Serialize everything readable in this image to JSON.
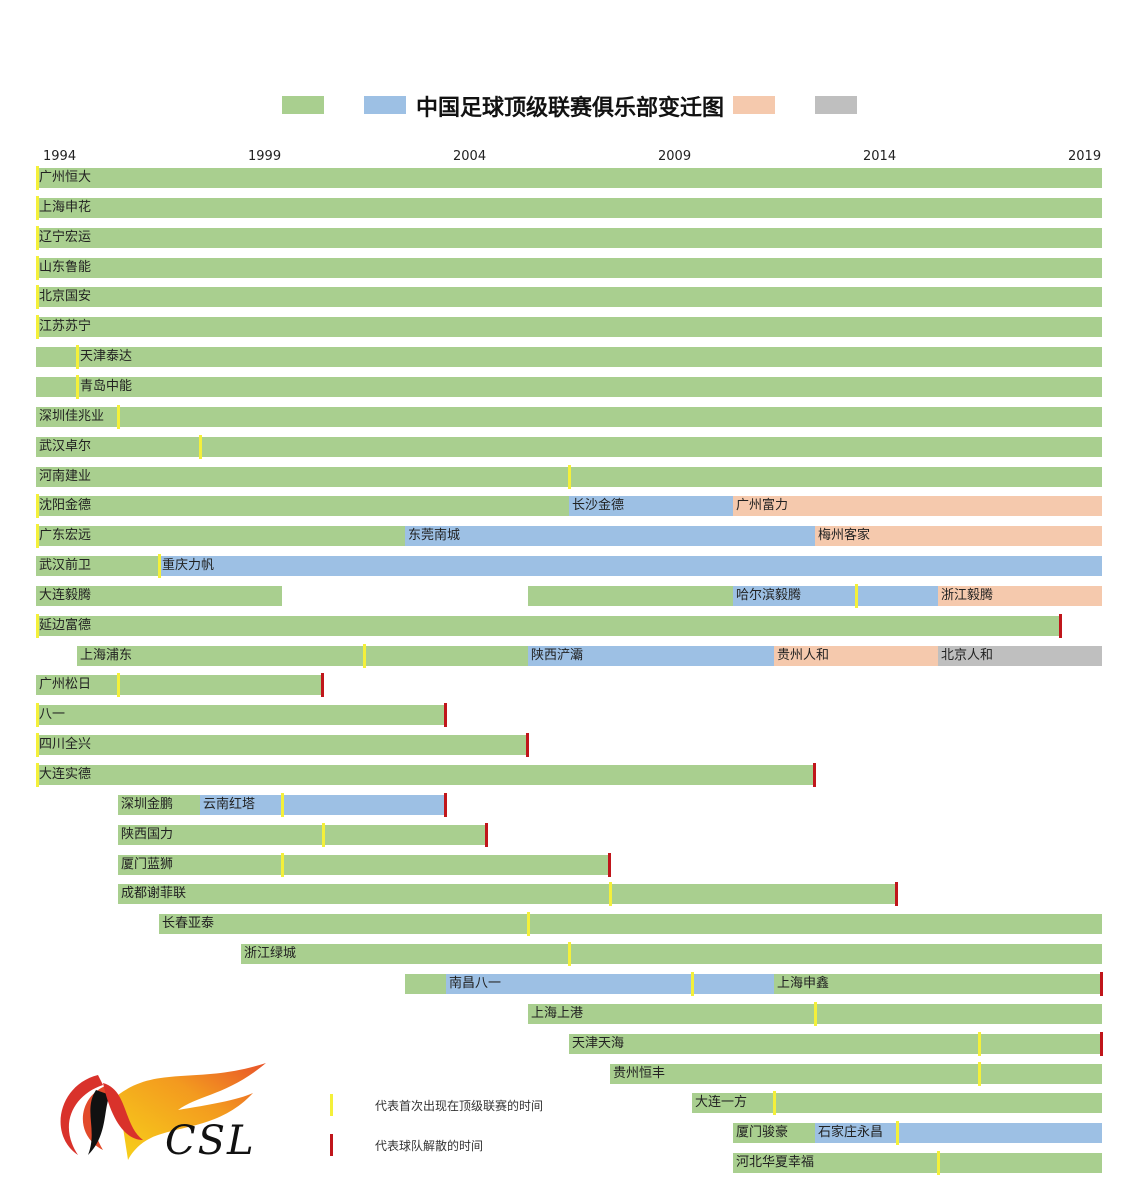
{
  "chart_data": {
    "type": "timeline",
    "title": "中国足球顶级联赛俱乐部变迁图",
    "xlabel": "",
    "ylabel": "",
    "x_ticks": [
      1994,
      1999,
      2004,
      2009,
      2014,
      2019
    ],
    "x_range": [
      1994,
      2020
    ],
    "legend_swatches": [
      {
        "color": "#a9cf8f",
        "label": ""
      },
      {
        "color": "#9dc0e4",
        "label": ""
      },
      {
        "color": "#f5c9ad",
        "label": ""
      },
      {
        "color": "#bfbfbf",
        "label": ""
      }
    ],
    "markers": {
      "first_appearance": {
        "color": "#f4f03a",
        "label": "代表首次出现在顶级联赛的时间"
      },
      "dissolved": {
        "color": "#c0161b",
        "label": "代表球队解散的时间"
      }
    },
    "rows": [
      {
        "segments": [
          {
            "start": 1994,
            "end": 2020,
            "color": "green",
            "label": "广州恒大"
          }
        ],
        "first": [
          1994
        ],
        "dissolved": []
      },
      {
        "segments": [
          {
            "start": 1994,
            "end": 2020,
            "color": "green",
            "label": "上海申花"
          }
        ],
        "first": [
          1994
        ],
        "dissolved": []
      },
      {
        "segments": [
          {
            "start": 1994,
            "end": 2020,
            "color": "green",
            "label": "辽宁宏运"
          }
        ],
        "first": [
          1994
        ],
        "dissolved": []
      },
      {
        "segments": [
          {
            "start": 1994,
            "end": 2020,
            "color": "green",
            "label": "山东鲁能"
          }
        ],
        "first": [
          1994
        ],
        "dissolved": []
      },
      {
        "segments": [
          {
            "start": 1994,
            "end": 2020,
            "color": "green",
            "label": "北京国安"
          }
        ],
        "first": [
          1994
        ],
        "dissolved": []
      },
      {
        "segments": [
          {
            "start": 1994,
            "end": 2020,
            "color": "green",
            "label": "江苏苏宁"
          }
        ],
        "first": [
          1994
        ],
        "dissolved": []
      },
      {
        "segments": [
          {
            "start": 1994,
            "end": 1995,
            "color": "green",
            "label": ""
          },
          {
            "start": 1995,
            "end": 2020,
            "color": "green",
            "label": "天津泰达"
          }
        ],
        "first": [
          1995
        ],
        "dissolved": []
      },
      {
        "segments": [
          {
            "start": 1994,
            "end": 1995,
            "color": "green",
            "label": ""
          },
          {
            "start": 1995,
            "end": 2020,
            "color": "green",
            "label": "青岛中能"
          }
        ],
        "first": [
          1995
        ],
        "dissolved": []
      },
      {
        "segments": [
          {
            "start": 1994,
            "end": 2020,
            "color": "green",
            "label": "深圳佳兆业"
          }
        ],
        "first": [
          1996
        ],
        "dissolved": []
      },
      {
        "segments": [
          {
            "start": 1994,
            "end": 2020,
            "color": "green",
            "label": "武汉卓尔"
          }
        ],
        "first": [
          1998
        ],
        "dissolved": []
      },
      {
        "segments": [
          {
            "start": 1994,
            "end": 2020,
            "color": "green",
            "label": "河南建业"
          }
        ],
        "first": [
          2007
        ],
        "dissolved": []
      },
      {
        "segments": [
          {
            "start": 1994,
            "end": 2007,
            "color": "green",
            "label": "沈阳金德"
          },
          {
            "start": 2007,
            "end": 2011,
            "color": "blue",
            "label": "长沙金德"
          },
          {
            "start": 2011,
            "end": 2020,
            "color": "peach",
            "label": "广州富力"
          }
        ],
        "first": [
          1994
        ],
        "dissolved": []
      },
      {
        "segments": [
          {
            "start": 1994,
            "end": 2003,
            "color": "green",
            "label": "广东宏远"
          },
          {
            "start": 2003,
            "end": 2013,
            "color": "blue",
            "label": "东莞南城"
          },
          {
            "start": 2013,
            "end": 2020,
            "color": "peach",
            "label": "梅州客家"
          }
        ],
        "first": [
          1994
        ],
        "dissolved": []
      },
      {
        "segments": [
          {
            "start": 1994,
            "end": 1997,
            "color": "green",
            "label": "武汉前卫"
          },
          {
            "start": 1997,
            "end": 2020,
            "color": "blue",
            "label": "重庆力帆"
          }
        ],
        "first": [
          1997
        ],
        "dissolved": []
      },
      {
        "segments": [
          {
            "start": 1994,
            "end": 2000,
            "color": "green",
            "label": "大连毅腾"
          },
          {
            "start": 2006,
            "end": 2011,
            "color": "green",
            "label": ""
          },
          {
            "start": 2011,
            "end": 2016,
            "color": "blue",
            "label": "哈尔滨毅腾"
          },
          {
            "start": 2016,
            "end": 2020,
            "color": "peach",
            "label": "浙江毅腾"
          }
        ],
        "first": [
          2014
        ],
        "dissolved": []
      },
      {
        "segments": [
          {
            "start": 1994,
            "end": 2019,
            "color": "green",
            "label": "延边富德"
          }
        ],
        "first": [
          1994
        ],
        "dissolved": [
          2019
        ]
      },
      {
        "segments": [
          {
            "start": 1995,
            "end": 2006,
            "color": "green",
            "label": "上海浦东"
          },
          {
            "start": 2006,
            "end": 2012,
            "color": "blue",
            "label": "陕西浐灞"
          },
          {
            "start": 2012,
            "end": 2016,
            "color": "peach",
            "label": "贵州人和"
          },
          {
            "start": 2016,
            "end": 2020,
            "color": "gray",
            "label": "北京人和"
          }
        ],
        "first": [
          2002
        ],
        "dissolved": []
      },
      {
        "segments": [
          {
            "start": 1994,
            "end": 2001,
            "color": "green",
            "label": "广州松日"
          }
        ],
        "first": [
          1996
        ],
        "dissolved": [
          2001
        ]
      },
      {
        "segments": [
          {
            "start": 1994,
            "end": 2004,
            "color": "green",
            "label": "八一"
          }
        ],
        "first": [
          1994
        ],
        "dissolved": [
          2004
        ]
      },
      {
        "segments": [
          {
            "start": 1994,
            "end": 2006,
            "color": "green",
            "label": "四川全兴"
          }
        ],
        "first": [
          1994
        ],
        "dissolved": [
          2006
        ]
      },
      {
        "segments": [
          {
            "start": 1994,
            "end": 2013,
            "color": "green",
            "label": "大连实德"
          }
        ],
        "first": [
          1994
        ],
        "dissolved": [
          2013
        ]
      },
      {
        "segments": [
          {
            "start": 1996,
            "end": 1998,
            "color": "green",
            "label": "深圳金鹏"
          },
          {
            "start": 1998,
            "end": 2004,
            "color": "blue",
            "label": "云南红塔"
          }
        ],
        "first": [
          2000
        ],
        "dissolved": [
          2004
        ]
      },
      {
        "segments": [
          {
            "start": 1996,
            "end": 2005,
            "color": "green",
            "label": "陕西国力"
          }
        ],
        "first": [
          2001
        ],
        "dissolved": [
          2005
        ]
      },
      {
        "segments": [
          {
            "start": 1996,
            "end": 2008,
            "color": "green",
            "label": "厦门蓝狮"
          }
        ],
        "first": [
          2000
        ],
        "dissolved": [
          2008
        ]
      },
      {
        "segments": [
          {
            "start": 1996,
            "end": 2015,
            "color": "green",
            "label": "成都谢菲联"
          }
        ],
        "first": [
          2008
        ],
        "dissolved": [
          2015
        ]
      },
      {
        "segments": [
          {
            "start": 1997,
            "end": 2020,
            "color": "green",
            "label": "长春亚泰"
          }
        ],
        "first": [
          2006
        ],
        "dissolved": []
      },
      {
        "segments": [
          {
            "start": 1999,
            "end": 2020,
            "color": "green",
            "label": "浙江绿城"
          }
        ],
        "first": [
          2007
        ],
        "dissolved": []
      },
      {
        "segments": [
          {
            "start": 2003,
            "end": 2004,
            "color": "green",
            "label": ""
          },
          {
            "start": 2004,
            "end": 2012,
            "color": "blue",
            "label": "南昌八一"
          },
          {
            "start": 2012,
            "end": 2020,
            "color": "green",
            "label": "上海申鑫"
          }
        ],
        "first": [
          2010
        ],
        "dissolved": [
          2020
        ]
      },
      {
        "segments": [
          {
            "start": 2006,
            "end": 2020,
            "color": "green",
            "label": "上海上港"
          }
        ],
        "first": [
          2013
        ],
        "dissolved": []
      },
      {
        "segments": [
          {
            "start": 2007,
            "end": 2020,
            "color": "green",
            "label": "天津天海"
          }
        ],
        "first": [
          2017
        ],
        "dissolved": [
          2020
        ]
      },
      {
        "segments": [
          {
            "start": 2008,
            "end": 2020,
            "color": "green",
            "label": "贵州恒丰"
          }
        ],
        "first": [
          2017
        ],
        "dissolved": []
      },
      {
        "segments": [
          {
            "start": 2010,
            "end": 2020,
            "color": "green",
            "label": "大连一方"
          }
        ],
        "first": [
          2012
        ],
        "dissolved": []
      },
      {
        "segments": [
          {
            "start": 2011,
            "end": 2013,
            "color": "green",
            "label": "厦门骏豪"
          },
          {
            "start": 2013,
            "end": 2020,
            "color": "blue",
            "label": "石家庄永昌"
          }
        ],
        "first": [
          2015
        ],
        "dissolved": []
      },
      {
        "segments": [
          {
            "start": 2011,
            "end": 2020,
            "color": "green",
            "label": "河北华夏幸福"
          }
        ],
        "first": [
          2016
        ],
        "dissolved": []
      }
    ]
  },
  "palette": {
    "green": "#a9cf8f",
    "blue": "#9dc0e4",
    "peach": "#f5c9ad",
    "gray": "#bfbfbf",
    "yellow": "#f4f03a",
    "red": "#c0161b"
  },
  "logo": {
    "text": "CSL"
  },
  "notes": {
    "first_label": "代表首次出现在顶级联赛的时间",
    "dissolved_label": "代表球队解散的时间"
  }
}
